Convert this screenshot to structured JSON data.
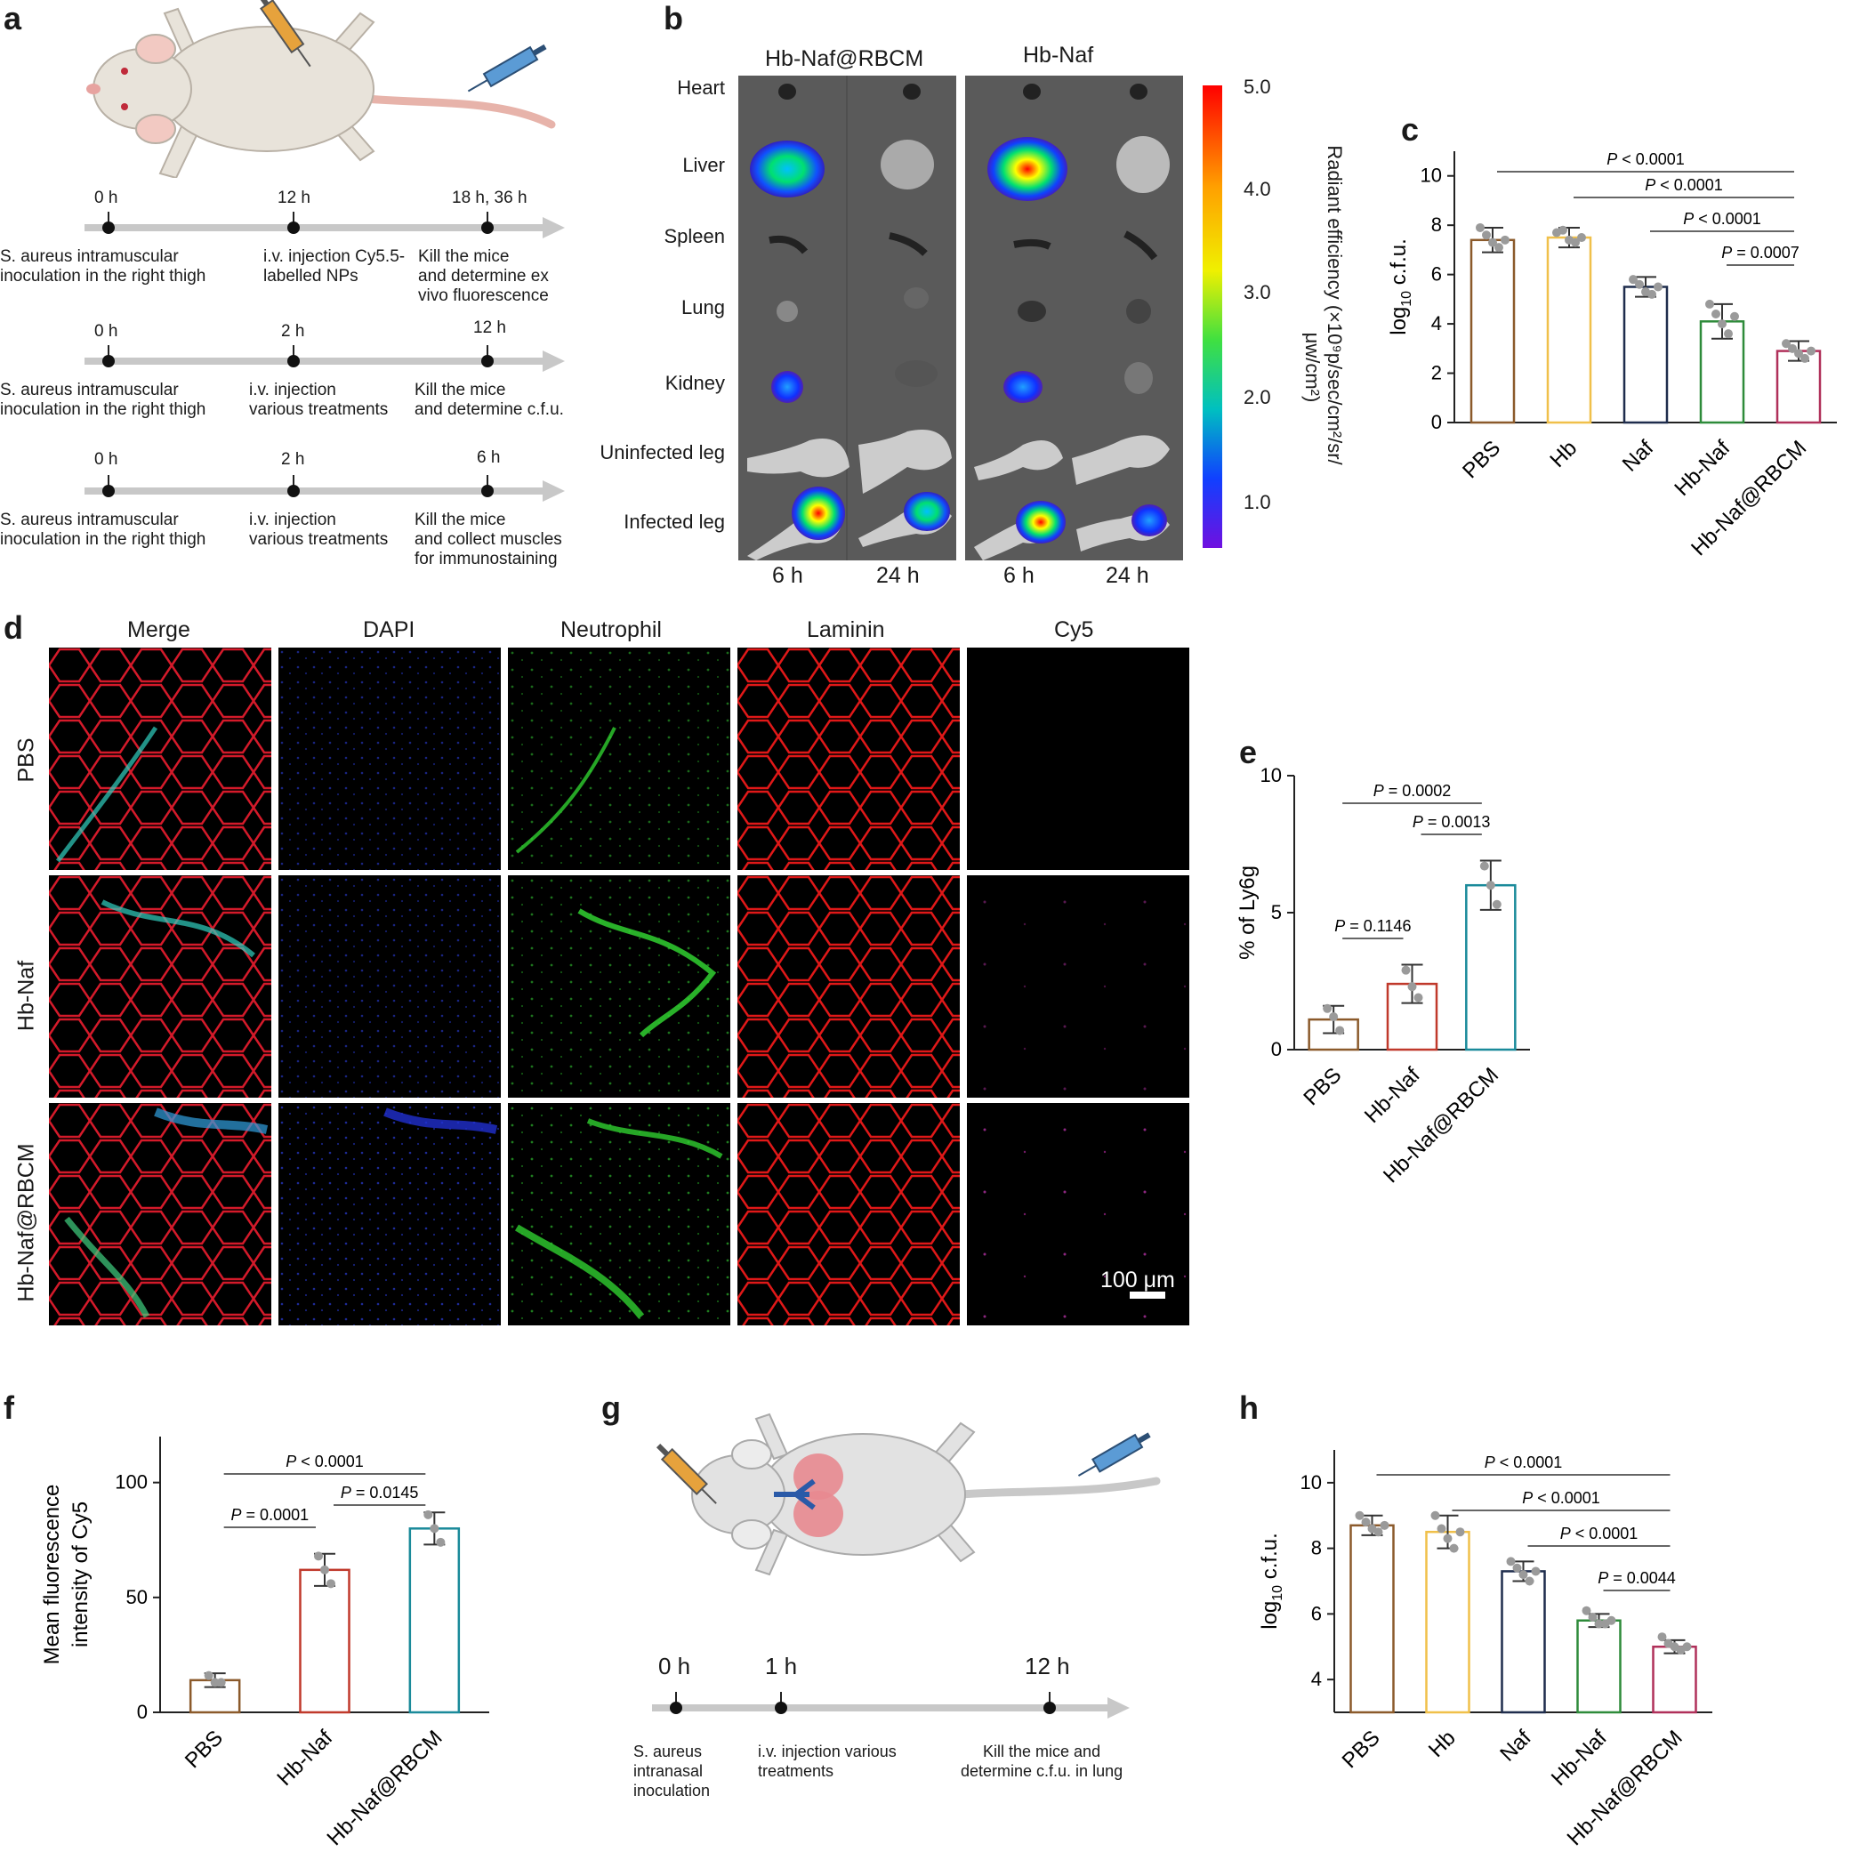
{
  "panel_labels": [
    "a",
    "b",
    "c",
    "d",
    "e",
    "f",
    "g",
    "h"
  ],
  "a": {
    "timelines": [
      {
        "times": [
          "0 h",
          "12 h",
          "18 h, 36 h"
        ],
        "texts": [
          "S. aureus intramuscular\ninoculation in the right thigh",
          "i.v. injection Cy5.5-\nlabelled NPs",
          "Kill the mice\nand determine ex\nvivo fluorescence"
        ]
      },
      {
        "times": [
          "0 h",
          "2 h",
          "12 h"
        ],
        "texts": [
          "S. aureus intramuscular\ninoculation in the right thigh",
          "i.v. injection\nvarious treatments",
          "Kill the mice\nand determine c.f.u."
        ]
      },
      {
        "times": [
          "0 h",
          "2 h",
          "6 h"
        ],
        "texts": [
          "S. aureus intramuscular\ninoculation in the right thigh",
          "i.v. injection\nvarious treatments",
          "Kill the mice\nand collect muscles\nfor immunostaining"
        ]
      }
    ]
  },
  "b": {
    "groups": [
      "Hb-Naf@RBCM",
      "Hb-Naf"
    ],
    "organs": [
      "Heart",
      "Liver",
      "Spleen",
      "Lung",
      "Kidney",
      "Uninfected leg",
      "Infected leg"
    ],
    "times": [
      "6 h",
      "24 h",
      "6 h",
      "24 h"
    ],
    "colorbar_ticks": [
      "5.0",
      "4.0",
      "3.0",
      "2.0",
      "1.0"
    ],
    "colorbar_label": "Radiant efficiency (×10⁹p/sec/cm²/sr/",
    "colorbar_label2": "μw/cm²)"
  },
  "d": {
    "columns": [
      "Merge",
      "DAPI",
      "Neutrophil",
      "Laminin",
      "Cy5"
    ],
    "rows": [
      "PBS",
      "Hb-Naf",
      "Hb-Naf@RBCM"
    ],
    "scale_bar": "100 μm"
  },
  "g": {
    "times": [
      "0 h",
      "1 h",
      "12 h"
    ],
    "texts": [
      "S. aureus\nintranasal\ninoculation",
      "i.v. injection various\ntreatments",
      "Kill the mice and\ndetermine c.f.u. in lung"
    ]
  },
  "chart_data": [
    {
      "panel": "c",
      "type": "bar",
      "categories": [
        "PBS",
        "Hb",
        "Naf",
        "Hb-Naf",
        "Hb-Naf@RBCM"
      ],
      "values": [
        7.4,
        7.5,
        5.5,
        4.1,
        2.9
      ],
      "errors": [
        0.5,
        0.4,
        0.4,
        0.7,
        0.4
      ],
      "points": [
        [
          7.9,
          7.6,
          7.3,
          7.1,
          7.4
        ],
        [
          7.7,
          7.8,
          7.4,
          7.3,
          7.5
        ],
        [
          5.8,
          5.6,
          5.3,
          5.2,
          5.5
        ],
        [
          4.8,
          4.4,
          4.0,
          3.6,
          4.3
        ],
        [
          3.2,
          3.0,
          2.8,
          2.6,
          2.9
        ]
      ],
      "ylabel": "log10 c.f.u.",
      "ylim": [
        0,
        11
      ],
      "yticks": [
        0,
        2,
        4,
        6,
        8,
        10
      ],
      "comparisons": [
        {
          "from": 0,
          "to": 4,
          "label": "P < 0.0001"
        },
        {
          "from": 1,
          "to": 4,
          "label": "P < 0.0001"
        },
        {
          "from": 2,
          "to": 4,
          "label": "P < 0.0001"
        },
        {
          "from": 3,
          "to": 4,
          "label": "P = 0.0007"
        }
      ]
    },
    {
      "panel": "e",
      "type": "bar",
      "categories": [
        "PBS",
        "Hb-Naf",
        "Hb-Naf@RBCM"
      ],
      "values": [
        1.1,
        2.4,
        6.0
      ],
      "errors": [
        0.5,
        0.7,
        0.9
      ],
      "points": [
        [
          1.5,
          1.2,
          0.7
        ],
        [
          2.9,
          2.3,
          1.9
        ],
        [
          6.7,
          6.0,
          5.3
        ]
      ],
      "ylabel": "% of Ly6g",
      "ylim": [
        0,
        10
      ],
      "yticks": [
        0,
        5,
        10
      ],
      "comparisons": [
        {
          "from": 0,
          "to": 2,
          "label": "P = 0.0002"
        },
        {
          "from": 1,
          "to": 2,
          "label": "P = 0.0013"
        },
        {
          "from": 0,
          "to": 1,
          "label": "P = 0.1146"
        }
      ]
    },
    {
      "panel": "f",
      "type": "bar",
      "categories": [
        "PBS",
        "Hb-Naf",
        "Hb-Naf@RBCM"
      ],
      "values": [
        14,
        62,
        80
      ],
      "errors": [
        3,
        7,
        7
      ],
      "points": [
        [
          16,
          13,
          13
        ],
        [
          68,
          62,
          56
        ],
        [
          86,
          80,
          74
        ]
      ],
      "ylabel": "Mean fluorescence intensity of Cy5",
      "ylim": [
        0,
        120
      ],
      "yticks": [
        0,
        50,
        100
      ],
      "comparisons": [
        {
          "from": 0,
          "to": 2,
          "label": "P < 0.0001"
        },
        {
          "from": 1,
          "to": 2,
          "label": "P = 0.0145"
        },
        {
          "from": 0,
          "to": 1,
          "label": "P = 0.0001"
        }
      ]
    },
    {
      "panel": "h",
      "type": "bar",
      "categories": [
        "PBS",
        "Hb",
        "Naf",
        "Hb-Naf",
        "Hb-Naf@RBCM"
      ],
      "values": [
        8.7,
        8.5,
        7.3,
        5.8,
        5.0
      ],
      "errors": [
        0.3,
        0.5,
        0.3,
        0.2,
        0.2
      ],
      "points": [
        [
          9.0,
          8.8,
          8.6,
          8.5,
          8.7
        ],
        [
          9.0,
          8.6,
          8.3,
          8.0,
          8.5
        ],
        [
          7.6,
          7.4,
          7.2,
          7.0,
          7.3
        ],
        [
          6.1,
          5.9,
          5.7,
          5.7,
          5.8
        ],
        [
          5.3,
          5.1,
          5.0,
          4.9,
          5.0
        ]
      ],
      "ylabel": "log10 c.f.u.",
      "ylim": [
        3,
        11
      ],
      "yticks": [
        4,
        6,
        8,
        10
      ],
      "comparisons": [
        {
          "from": 0,
          "to": 4,
          "label": "P < 0.0001"
        },
        {
          "from": 1,
          "to": 4,
          "label": "P < 0.0001"
        },
        {
          "from": 2,
          "to": 4,
          "label": "P < 0.0001"
        },
        {
          "from": 3,
          "to": 4,
          "label": "P = 0.0044"
        }
      ]
    }
  ],
  "colors": {
    "bars": [
      "#8b5a2b",
      "#f0c04a",
      "#1f2d4d",
      "#2e8b3a",
      "#b0305a"
    ],
    "bars3": [
      "#8b5a2b",
      "#c0392b",
      "#1a8a9a"
    ],
    "points": "#9a9a9a"
  }
}
